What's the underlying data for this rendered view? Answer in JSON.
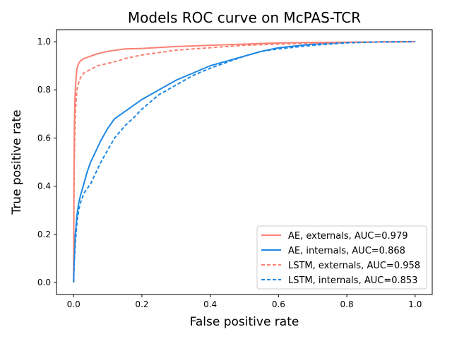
{
  "chart_data": {
    "type": "line",
    "title": "Models ROC curve on McPAS-TCR",
    "xlabel": "False positive rate",
    "ylabel": "True positive rate",
    "xlim": [
      -0.05,
      1.05
    ],
    "ylim": [
      -0.05,
      1.05
    ],
    "xticks": [
      "0.0",
      "0.2",
      "0.4",
      "0.6",
      "0.8",
      "1.0"
    ],
    "yticks": [
      "0.0",
      "0.2",
      "0.4",
      "0.6",
      "0.8",
      "1.0"
    ],
    "grid": false,
    "legend_position": "lower-right",
    "series": [
      {
        "name": "AE, externals, AUC=0.979",
        "color": "#fa8072",
        "dashed": false,
        "x": [
          0,
          0.001,
          0.002,
          0.003,
          0.005,
          0.008,
          0.01,
          0.015,
          0.02,
          0.03,
          0.05,
          0.07,
          0.1,
          0.15,
          0.2,
          0.3,
          0.4,
          0.5,
          0.6,
          0.7,
          0.8,
          0.9,
          1.0
        ],
        "y": [
          0,
          0.4,
          0.6,
          0.7,
          0.8,
          0.86,
          0.89,
          0.91,
          0.92,
          0.93,
          0.94,
          0.95,
          0.96,
          0.97,
          0.972,
          0.98,
          0.985,
          0.99,
          0.995,
          0.997,
          0.998,
          0.999,
          1.0
        ]
      },
      {
        "name": "AE, internals, AUC=0.868",
        "color": "#1e88e5",
        "dashed": false,
        "x": [
          0,
          0.002,
          0.005,
          0.01,
          0.015,
          0.02,
          0.03,
          0.04,
          0.05,
          0.06,
          0.08,
          0.1,
          0.12,
          0.15,
          0.18,
          0.2,
          0.25,
          0.3,
          0.35,
          0.4,
          0.45,
          0.5,
          0.55,
          0.6,
          0.7,
          0.8,
          0.9,
          1.0
        ],
        "y": [
          0,
          0.1,
          0.2,
          0.28,
          0.33,
          0.36,
          0.41,
          0.46,
          0.5,
          0.53,
          0.59,
          0.64,
          0.68,
          0.71,
          0.74,
          0.76,
          0.8,
          0.84,
          0.87,
          0.9,
          0.92,
          0.94,
          0.96,
          0.975,
          0.99,
          0.997,
          0.999,
          1.0
        ]
      },
      {
        "name": "LSTM, externals, AUC=0.958",
        "color": "#fa8072",
        "dashed": true,
        "x": [
          0,
          0.001,
          0.002,
          0.004,
          0.006,
          0.008,
          0.01,
          0.015,
          0.02,
          0.03,
          0.05,
          0.07,
          0.1,
          0.13,
          0.15,
          0.2,
          0.25,
          0.3,
          0.35,
          0.4,
          0.5,
          0.6,
          0.7,
          0.8,
          0.9,
          1.0
        ],
        "y": [
          0,
          0.3,
          0.5,
          0.63,
          0.72,
          0.77,
          0.8,
          0.83,
          0.85,
          0.87,
          0.885,
          0.9,
          0.91,
          0.92,
          0.93,
          0.945,
          0.955,
          0.965,
          0.97,
          0.975,
          0.985,
          0.99,
          0.994,
          0.997,
          0.999,
          1.0
        ]
      },
      {
        "name": "LSTM, internals, AUC=0.853",
        "color": "#1e88e5",
        "dashed": true,
        "x": [
          0,
          0.002,
          0.005,
          0.01,
          0.015,
          0.02,
          0.03,
          0.04,
          0.05,
          0.06,
          0.08,
          0.1,
          0.12,
          0.15,
          0.18,
          0.2,
          0.25,
          0.3,
          0.35,
          0.4,
          0.45,
          0.5,
          0.55,
          0.6,
          0.7,
          0.8,
          0.9,
          1.0
        ],
        "y": [
          0,
          0.08,
          0.16,
          0.25,
          0.3,
          0.33,
          0.37,
          0.39,
          0.41,
          0.44,
          0.5,
          0.55,
          0.6,
          0.65,
          0.69,
          0.72,
          0.78,
          0.82,
          0.86,
          0.89,
          0.915,
          0.94,
          0.96,
          0.97,
          0.985,
          0.995,
          0.999,
          1.0
        ]
      }
    ]
  }
}
